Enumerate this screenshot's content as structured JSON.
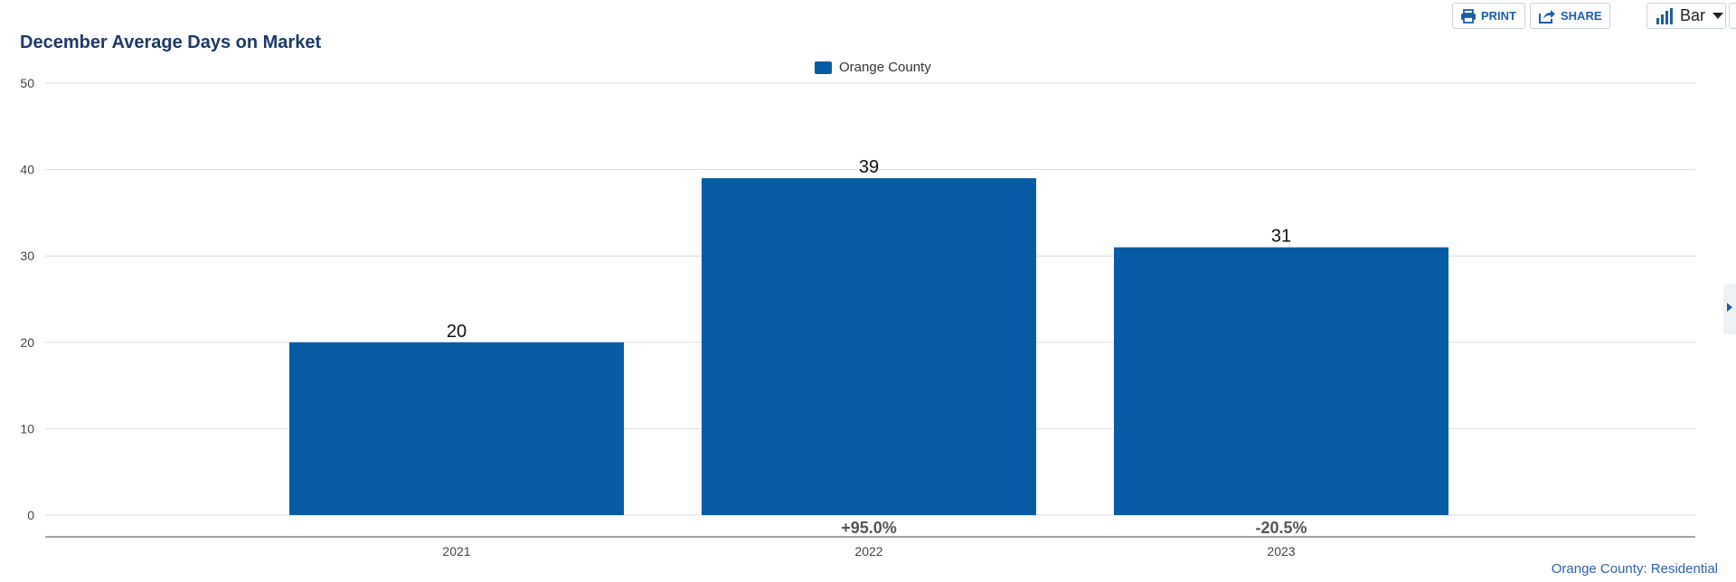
{
  "toolbar": {
    "print_label": "PRINT",
    "share_label": "SHARE",
    "chart_type_label": "Bar"
  },
  "footer": {
    "source_label": "Orange County: Residential"
  },
  "colors": {
    "bar": "#075ba5",
    "title": "#1c3a66",
    "toolbar_text": "#1c5fa6"
  },
  "chart_data": {
    "type": "bar",
    "title": "December Average Days on Market",
    "categories": [
      "2021",
      "2022",
      "2023"
    ],
    "series": [
      {
        "name": "Orange County",
        "values": [
          20,
          39,
          31
        ],
        "color": "#075ba5"
      }
    ],
    "data_labels": [
      "20",
      "39",
      "31"
    ],
    "change_labels": [
      "",
      "+95.0%",
      "-20.5%"
    ],
    "ylim": [
      0,
      50
    ],
    "yticks": [
      0,
      10,
      20,
      30,
      40,
      50
    ],
    "grid": true,
    "legend_position": "top-center",
    "xlabel": "",
    "ylabel": ""
  }
}
